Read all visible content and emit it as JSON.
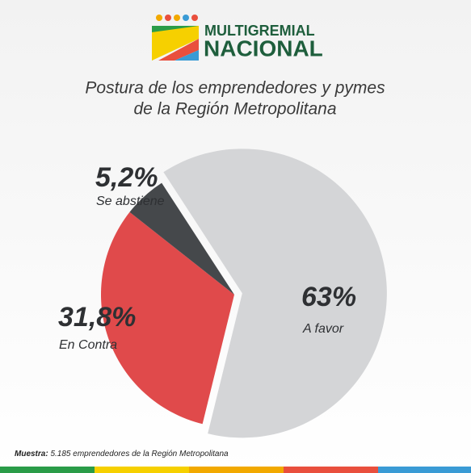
{
  "logo": {
    "line1": "MULTIGREMIAL",
    "line2": "NACIONAL"
  },
  "chart_data": {
    "type": "pie",
    "title": [
      "Postura de los emprendedores y pymes",
      "de la Región Metropolitana"
    ],
    "categories": [
      "A favor",
      "En Contra",
      "Se abstiene"
    ],
    "values": [
      63,
      31.8,
      5.2
    ],
    "value_labels": [
      "63%",
      "31,8%",
      "5,2%"
    ],
    "colors": [
      "#d4d5d7",
      "#e04a4b",
      "#45484b"
    ]
  },
  "footnote": {
    "label": "Muestra:",
    "text": "5.185 emprendedores de la Región Metropolitana"
  }
}
